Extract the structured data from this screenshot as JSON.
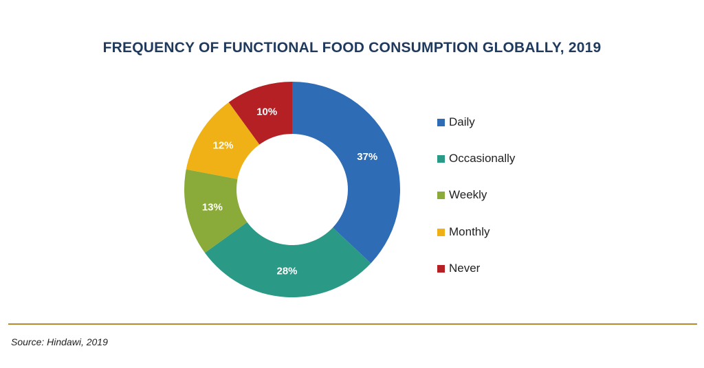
{
  "title": "FREQUENCY OF FUNCTIONAL FOOD CONSUMPTION GLOBALLY, 2019",
  "source": "Source: Hindawi, 2019",
  "chart_data": {
    "type": "pie",
    "variant": "donut",
    "title": "FREQUENCY OF FUNCTIONAL FOOD CONSUMPTION GLOBALLY, 2019",
    "categories": [
      "Daily",
      "Occasionally",
      "Weekly",
      "Monthly",
      "Never"
    ],
    "values": [
      37,
      28,
      13,
      12,
      10
    ],
    "labels": [
      "37%",
      "28%",
      "13%",
      "12%",
      "10%"
    ],
    "colors": [
      "#2e6cb5",
      "#2a9a86",
      "#8aab39",
      "#f0b117",
      "#b52024"
    ],
    "legend_position": "right"
  }
}
